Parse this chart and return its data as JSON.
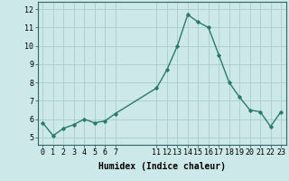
{
  "x": [
    0,
    1,
    2,
    3,
    4,
    5,
    6,
    7,
    11,
    12,
    13,
    14,
    15,
    16,
    17,
    18,
    19,
    20,
    21,
    22,
    23
  ],
  "y": [
    5.8,
    5.1,
    5.5,
    5.7,
    6.0,
    5.8,
    5.9,
    6.3,
    7.7,
    8.7,
    10.0,
    11.7,
    11.3,
    11.0,
    9.5,
    8.0,
    7.2,
    6.5,
    6.4,
    5.6,
    6.4
  ],
  "line_color": "#2a7a6a",
  "marker": "D",
  "markersize": 1.8,
  "linewidth": 1.0,
  "bg_color": "#cce8e8",
  "grid_color": "#aacccc",
  "xlabel": "Humidex (Indice chaleur)",
  "xlabel_fontsize": 7,
  "ylabel_ticks": [
    5,
    6,
    7,
    8,
    9,
    10,
    11,
    12
  ],
  "xticks": [
    0,
    1,
    2,
    3,
    4,
    5,
    6,
    7,
    11,
    12,
    13,
    14,
    15,
    16,
    17,
    18,
    19,
    20,
    21,
    22,
    23
  ],
  "xlim": [
    -0.5,
    23.5
  ],
  "ylim": [
    4.6,
    12.4
  ],
  "tick_fontsize": 6
}
